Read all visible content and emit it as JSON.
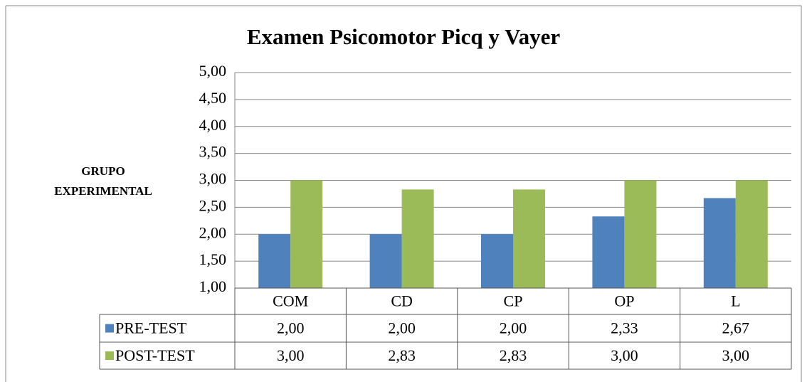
{
  "chart_data": {
    "type": "bar",
    "title": "Examen Psicomotor Picq y Vayer",
    "y_label": [
      "GRUPO",
      "EXPERIMENTAL"
    ],
    "categories": [
      "COM",
      "CD",
      "CP",
      "OP",
      "L"
    ],
    "series": [
      {
        "name": "PRE-TEST",
        "color": "#4f81bd",
        "values": [
          2.0,
          2.0,
          2.0,
          2.33,
          2.67
        ],
        "value_labels": [
          "2,00",
          "2,00",
          "2,00",
          "2,33",
          "2,67"
        ]
      },
      {
        "name": "POST-TEST",
        "color": "#9bbb59",
        "values": [
          3.0,
          2.83,
          2.83,
          3.0,
          3.0
        ],
        "value_labels": [
          "3,00",
          "2,83",
          "2,83",
          "3,00",
          "3,00"
        ]
      }
    ],
    "ylim": [
      1,
      5
    ],
    "yticks": [
      {
        "value": 1,
        "label": "1,00"
      },
      {
        "value": 1.5,
        "label": "1,50"
      },
      {
        "value": 2,
        "label": "2,00"
      },
      {
        "value": 2.5,
        "label": "2,50"
      },
      {
        "value": 3,
        "label": "3,00"
      },
      {
        "value": 3.5,
        "label": "3,50"
      },
      {
        "value": 4,
        "label": "4,00"
      },
      {
        "value": 4.5,
        "label": "4,50"
      },
      {
        "value": 5,
        "label": "5,00"
      }
    ],
    "grid": true,
    "legend": "table"
  }
}
